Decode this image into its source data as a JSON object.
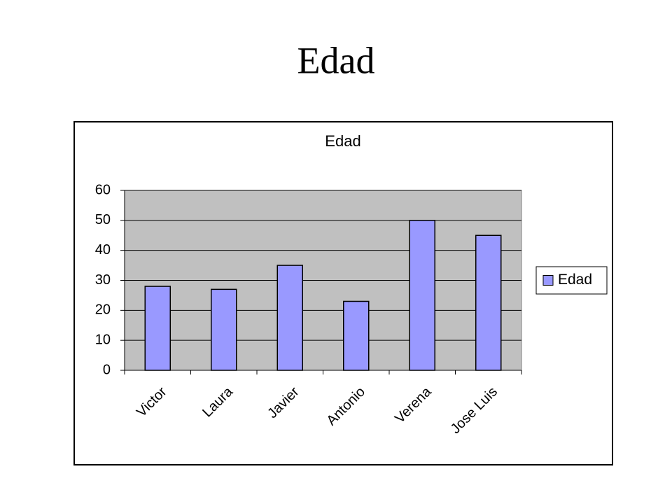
{
  "slide_title": "Edad",
  "chart_data": {
    "type": "bar",
    "title": "Edad",
    "categories": [
      "Victor",
      "Laura",
      "Javier",
      "Antonio",
      "Verena",
      "Jose Luis"
    ],
    "series": [
      {
        "name": "Edad",
        "color": "#9999ff",
        "values": [
          28,
          27,
          35,
          23,
          50,
          45
        ]
      }
    ],
    "ylim": [
      0,
      60
    ],
    "yticks": [
      0,
      10,
      20,
      30,
      40,
      50,
      60
    ],
    "grid": true,
    "legend": "right"
  }
}
